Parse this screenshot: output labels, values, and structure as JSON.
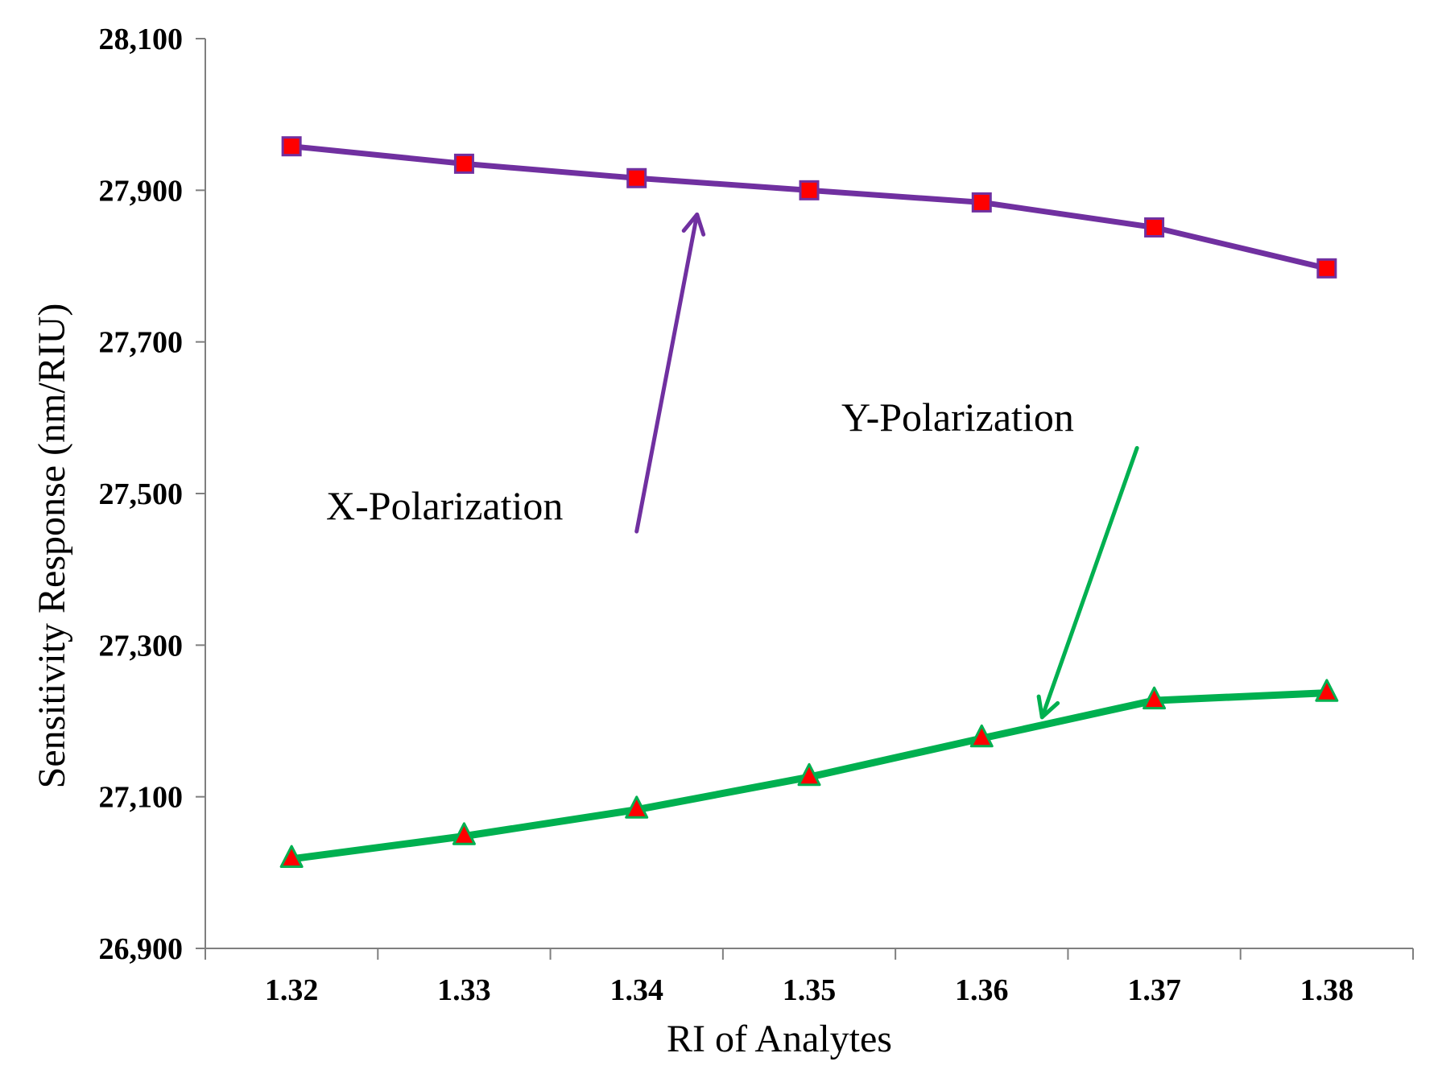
{
  "chart_data": {
    "type": "line",
    "title": "",
    "xlabel": "RI of Analytes",
    "ylabel": "Sensitivity Response (nm/RIU)",
    "categories": [
      "1.32",
      "1.33",
      "1.34",
      "1.35",
      "1.36",
      "1.37",
      "1.38"
    ],
    "ylim": [
      26900,
      28100
    ],
    "yticks": [
      26900,
      27100,
      27300,
      27500,
      27700,
      27900,
      28100
    ],
    "ytick_labels": [
      "26,900",
      "27,100",
      "27,300",
      "27,500",
      "27,700",
      "27,900",
      "28,100"
    ],
    "grid": false,
    "series": [
      {
        "name": "X-Polarization",
        "marker": "square",
        "line_color": "#7030a0",
        "marker_color": "#ff0000",
        "values": [
          27958,
          27935,
          27916,
          27900,
          27884,
          27851,
          27797
        ]
      },
      {
        "name": "Y-Polarization",
        "marker": "triangle",
        "line_color": "#00b050",
        "marker_color": "#ff0000",
        "values": [
          27018,
          27048,
          27083,
          27126,
          27177,
          27227,
          27237
        ]
      }
    ],
    "annotations": [
      {
        "text": "X-Polarization",
        "color": "#7030a0",
        "arrow_from": {
          "x": 2.0,
          "y": 27450
        },
        "arrow_to": {
          "x": 2.35,
          "y": 27868
        }
      },
      {
        "text": "Y-Polarization",
        "color": "#00b050",
        "arrow_from": {
          "x": 4.9,
          "y": 27560
        },
        "arrow_to": {
          "x": 4.35,
          "y": 27205
        }
      }
    ]
  }
}
